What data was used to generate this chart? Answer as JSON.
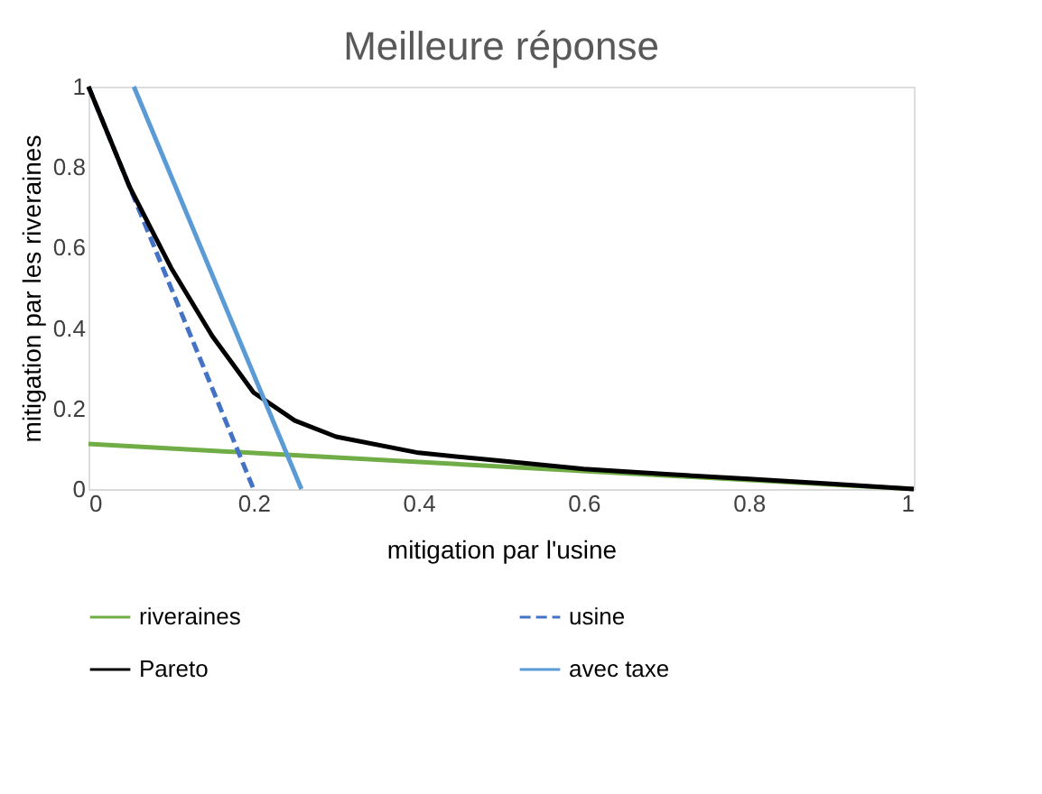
{
  "chart_data": {
    "type": "line",
    "title": "Meilleure réponse",
    "xlabel": "mitigation par l'usine",
    "ylabel": "mitigation par les riveraines",
    "xlim": [
      0,
      1
    ],
    "ylim": [
      0,
      1
    ],
    "xticks": [
      0,
      0.2,
      0.4,
      0.6,
      0.8,
      1
    ],
    "yticks": [
      0,
      0.2,
      0.4,
      0.6,
      0.8,
      1
    ],
    "grid": false,
    "legend": "bottom",
    "marker": "none",
    "series": [
      {
        "name": "riveraines",
        "color": "#70ad47",
        "line_style": "solid",
        "x": [
          0,
          1
        ],
        "values": [
          0.112,
          0
        ]
      },
      {
        "name": "usine",
        "color": "#4472c4",
        "line_style": "dashed",
        "x": [
          0,
          0.2
        ],
        "values": [
          1,
          0
        ]
      },
      {
        "name": "Pareto",
        "color": "#000000",
        "line_style": "solid",
        "x": [
          0,
          0.05,
          0.1,
          0.15,
          0.2,
          0.25,
          0.3,
          0.4,
          0.5,
          0.6,
          0.7,
          0.8,
          0.9,
          1
        ],
        "values": [
          1,
          0.75,
          0.55,
          0.38,
          0.24,
          0.17,
          0.13,
          0.09,
          0.07,
          0.05,
          0.037,
          0.025,
          0.013,
          0
        ]
      },
      {
        "name": "avec taxe",
        "color": "#5b9bd5",
        "line_style": "solid",
        "x": [
          0.055,
          0.258
        ],
        "values": [
          1,
          0
        ]
      }
    ]
  }
}
